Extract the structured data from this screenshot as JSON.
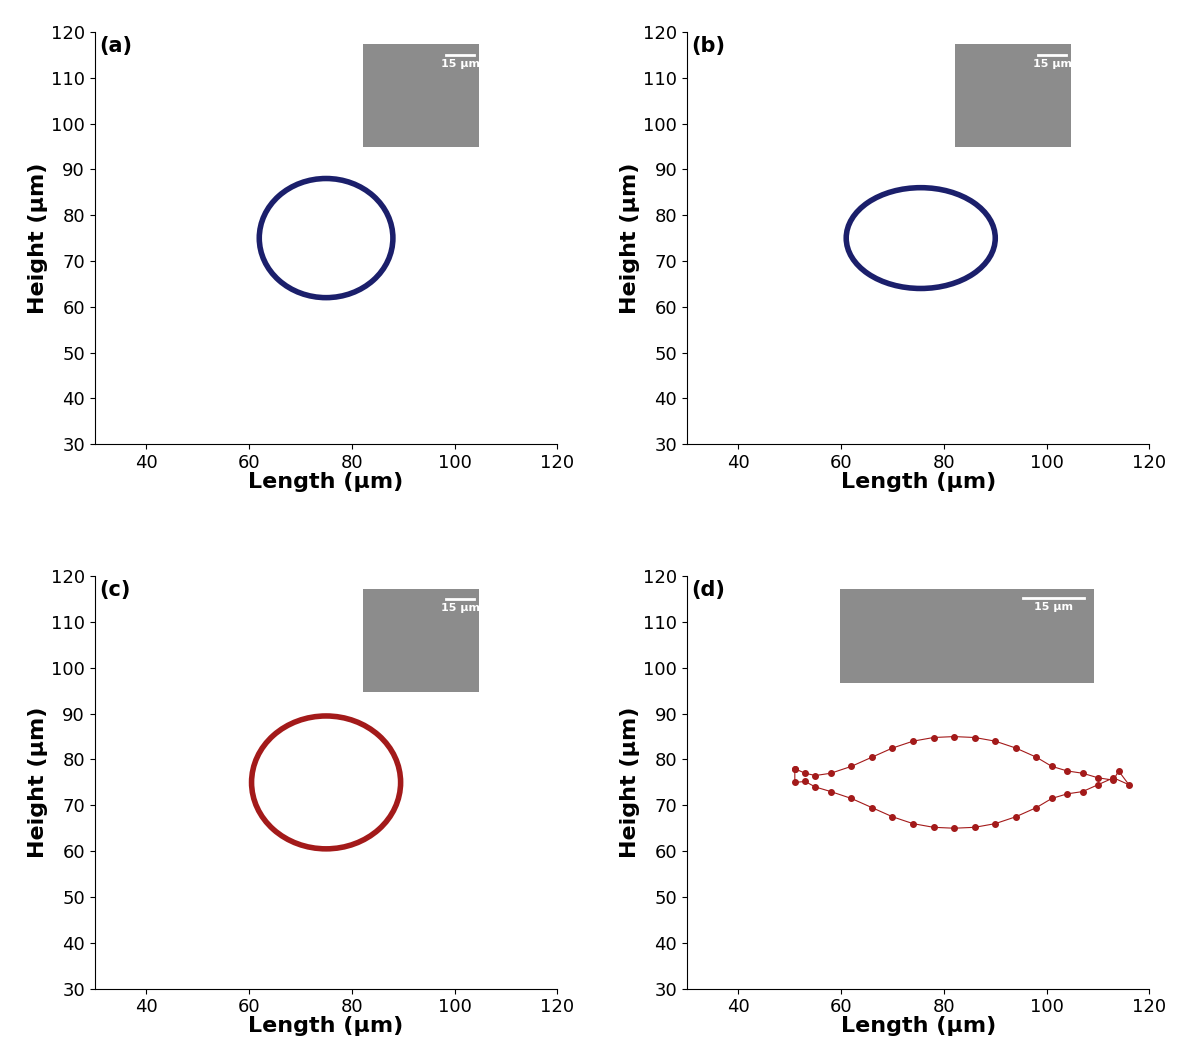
{
  "chart_data": [
    {
      "type": "ellipse",
      "title": "(a)",
      "x_label": "Length (μm)",
      "y_label": "Height (μm)",
      "center": [
        75,
        75
      ],
      "width": 26,
      "height": 26,
      "color": "#1b1f6b",
      "xlim": [
        30,
        120
      ],
      "xticks": [
        40,
        60,
        80,
        100,
        120
      ],
      "ylim": [
        30,
        120
      ],
      "yticks": [
        30,
        40,
        50,
        60,
        70,
        80,
        90,
        100,
        110,
        120
      ],
      "inset_label": "15 μm"
    },
    {
      "type": "ellipse",
      "title": "(b)",
      "x_label": "Length (μm)",
      "y_label": "Height (μm)",
      "center": [
        75.5,
        75
      ],
      "width": 29,
      "height": 22,
      "color": "#1b1f6b",
      "xlim": [
        30,
        120
      ],
      "xticks": [
        40,
        60,
        80,
        100,
        120
      ],
      "ylim": [
        30,
        120
      ],
      "yticks": [
        30,
        40,
        50,
        60,
        70,
        80,
        90,
        100,
        110,
        120
      ],
      "inset_label": "15 μm"
    },
    {
      "type": "ellipse",
      "title": "(c)",
      "x_label": "Length (μm)",
      "y_label": "Height (μm)",
      "center": [
        75,
        75
      ],
      "width": 29,
      "height": 29,
      "color": "#a31a1a",
      "xlim": [
        30,
        120
      ],
      "xticks": [
        40,
        60,
        80,
        100,
        120
      ],
      "ylim": [
        30,
        120
      ],
      "yticks": [
        30,
        40,
        50,
        60,
        70,
        80,
        90,
        100,
        110,
        120
      ],
      "inset_label": "15 μm"
    },
    {
      "type": "line",
      "title": "(d)",
      "x_label": "Length (μm)",
      "y_label": "Height (μm)",
      "x": [
        51,
        53,
        55,
        58,
        62,
        66,
        70,
        74,
        78,
        82,
        86,
        90,
        94,
        98,
        101,
        104,
        107,
        110,
        113,
        114,
        116,
        113,
        110,
        107,
        104,
        101,
        98,
        94,
        90,
        86,
        82,
        78,
        74,
        70,
        66,
        62,
        58,
        55,
        53,
        51,
        51
      ],
      "y": [
        78,
        77,
        76.5,
        77,
        78.5,
        80.5,
        82.5,
        84,
        84.8,
        85,
        84.8,
        84,
        82.5,
        80.5,
        78.5,
        77.5,
        77,
        76,
        75.5,
        77.5,
        74.5,
        76,
        74.5,
        73,
        72.5,
        71.5,
        69.5,
        67.5,
        66,
        65.2,
        65,
        65.2,
        66,
        67.5,
        69.5,
        71.5,
        73,
        74,
        75.2,
        75,
        78
      ],
      "color": "#a31a1a",
      "marker": "o",
      "xlim": [
        30,
        120
      ],
      "xticks": [
        40,
        60,
        80,
        100,
        120
      ],
      "ylim": [
        30,
        120
      ],
      "yticks": [
        30,
        40,
        50,
        60,
        70,
        80,
        90,
        100,
        110,
        120
      ],
      "inset_label": "15 μm"
    }
  ]
}
